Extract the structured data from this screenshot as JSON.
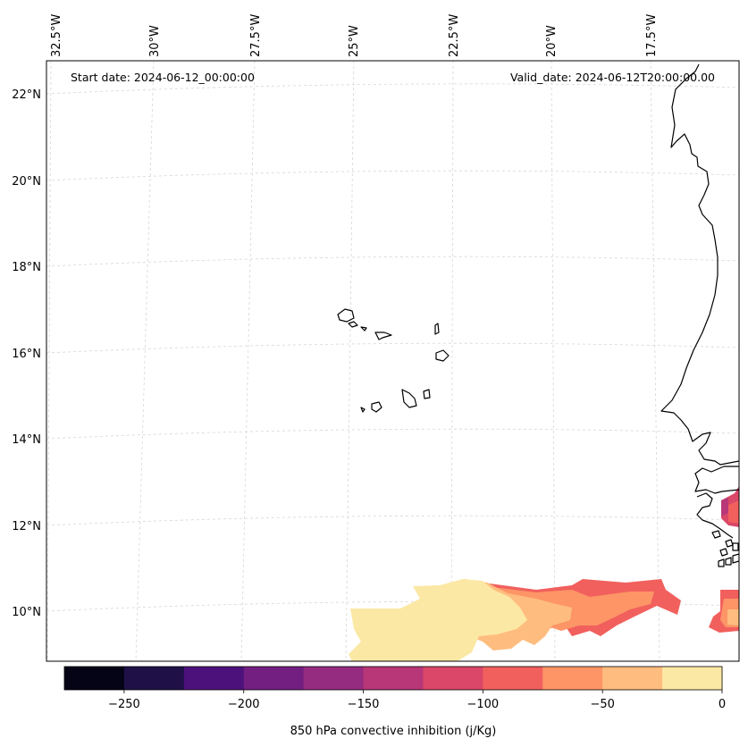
{
  "map": {
    "start_label": "Start date: 2024-06-12_00:00:00",
    "valid_label": "Valid_date: 2024-06-12T20:00:00.00",
    "lon_labels": [
      "32.5°W",
      "30°W",
      "27.5°W",
      "25°W",
      "22.5°W",
      "20°W",
      "17.5°W"
    ],
    "lat_labels": [
      "22°N",
      "20°N",
      "18°N",
      "16°N",
      "14°N",
      "12°N",
      "10°N"
    ],
    "field": "850 hPa convective inhibition",
    "units": "j/Kg"
  },
  "colorbar": {
    "label": "850 hPa convective inhibition (j/Kg)",
    "tick_labels": [
      "−250",
      "−200",
      "−150",
      "−100",
      "−50",
      "0"
    ],
    "levels": [
      -275,
      -250,
      -225,
      -200,
      -175,
      -150,
      -125,
      -100,
      -75,
      -50,
      -25,
      0
    ],
    "colors": [
      "#050416",
      "#1f1147",
      "#4c117a",
      "#721f81",
      "#952c80",
      "#b73779",
      "#da4769",
      "#f1605d",
      "#fd9567",
      "#febd7f",
      "#fce8a5"
    ]
  },
  "colors": {
    "coast": "#000000",
    "grid": "#cccccc",
    "background": "#ffffff"
  }
}
